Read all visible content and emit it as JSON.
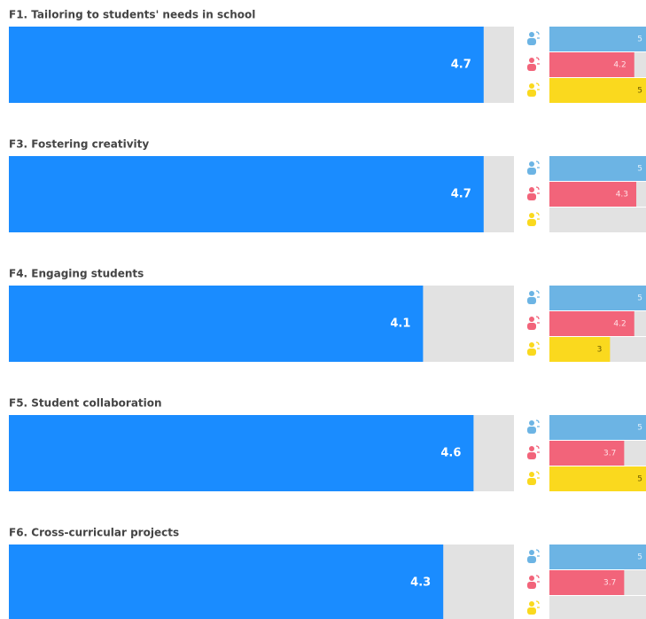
{
  "chart_data": [
    {
      "type": "bar",
      "title": "F1. Tailoring to students' needs in school",
      "value": 4.7,
      "color": "#1a8cff",
      "xlim": [
        0,
        5
      ],
      "breakdown": [
        5,
        4.2,
        5
      ]
    },
    {
      "type": "bar",
      "title": "F3. Fostering creativity",
      "value": 4.7,
      "color": "#1a8cff",
      "xlim": [
        0,
        5
      ],
      "breakdown": [
        5,
        4.3,
        null
      ]
    },
    {
      "type": "bar",
      "title": "F4. Engaging students",
      "value": 4.1,
      "color": "#1a8cff",
      "xlim": [
        0,
        5
      ],
      "breakdown": [
        5,
        4.2,
        3
      ]
    },
    {
      "type": "bar",
      "title": "F5. Student collaboration",
      "value": 4.6,
      "color": "#1a8cff",
      "xlim": [
        0,
        5
      ],
      "breakdown": [
        5,
        3.7,
        5
      ]
    },
    {
      "type": "bar",
      "title": "F6. Cross-curricular projects",
      "value": 4.3,
      "color": "#1a8cff",
      "xlim": [
        0,
        5
      ],
      "breakdown": [
        5,
        3.7,
        null
      ]
    }
  ],
  "breakdown_colors": [
    "#6cb4e4",
    "#f2647a",
    "#fad91e"
  ]
}
